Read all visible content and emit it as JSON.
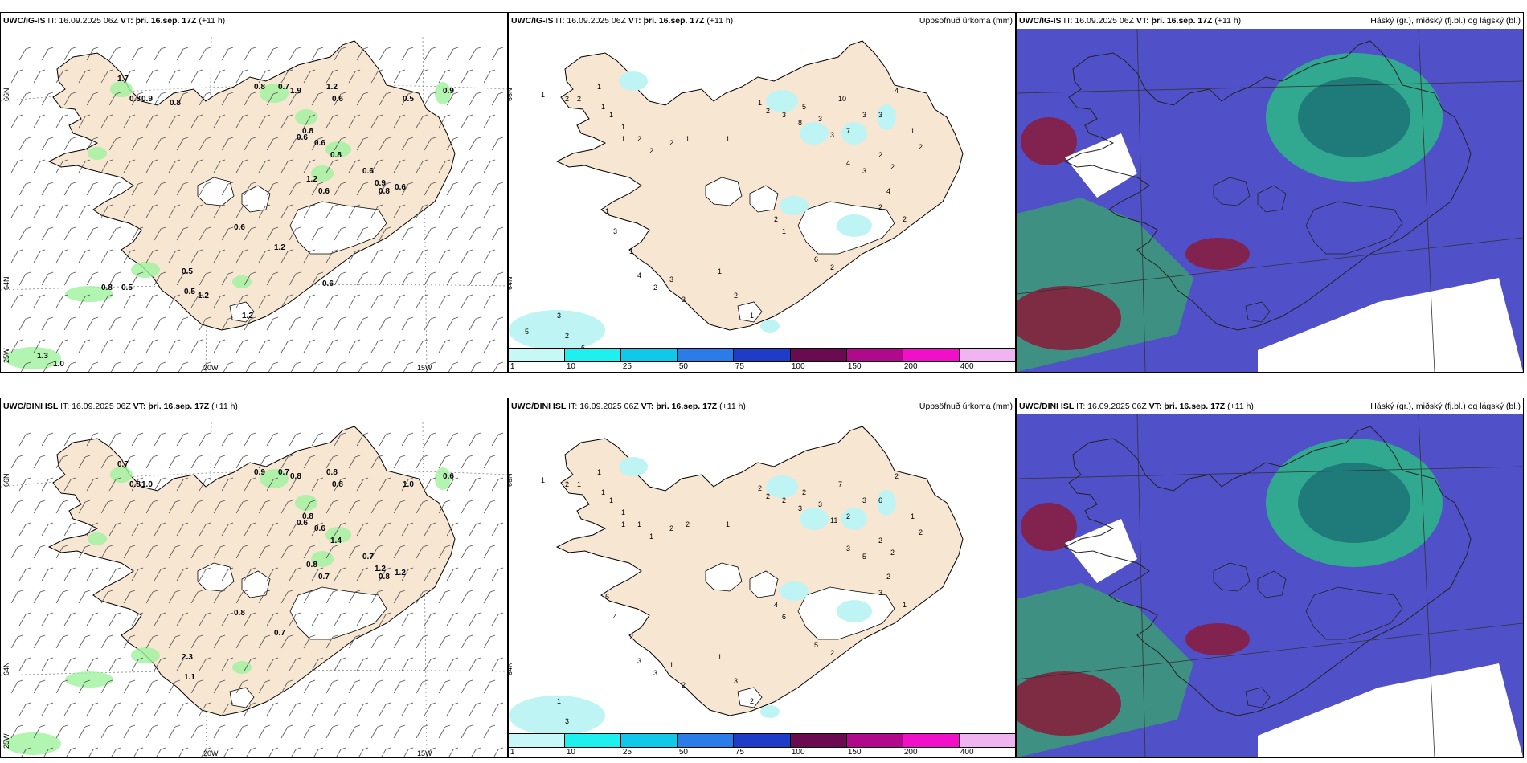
{
  "rows": [
    {
      "model": "UWC/IG-IS",
      "it_label": "IT:",
      "it_value": "16.09.2025 06Z",
      "vt_label": "VT:",
      "vt_value": "þri. 16.sep. 17Z",
      "lead": "(+11 h)",
      "wind_values": [
        "1.7",
        "0.8",
        "0.9",
        "0.8",
        "0.7",
        "1.9",
        "1.2",
        "0.6",
        "0.8",
        "0.6",
        "0.6",
        "0.8",
        "1.2",
        "0.6",
        "0.9",
        "0.6",
        "0.8",
        "0.6",
        "0.5",
        "0.9",
        "0.6",
        "1.2",
        "0.5",
        "0.5",
        "1.2",
        "0.8",
        "0.5",
        "1.2",
        "0.8",
        "0.6",
        "1.3",
        "1.0"
      ],
      "precip_values": [
        "1",
        "2",
        "2",
        "1",
        "1",
        "1",
        "1",
        "1",
        "2",
        "2",
        "2",
        "1",
        "1",
        "1",
        "2",
        "3",
        "5",
        "8",
        "3",
        "3",
        "10",
        "7",
        "3",
        "3",
        "4",
        "4",
        "3",
        "2",
        "2",
        "4",
        "2",
        "2",
        "1",
        "2",
        "1",
        "3",
        "1",
        "4",
        "2",
        "3",
        "3",
        "1",
        "2",
        "1",
        "6",
        "2",
        "2",
        "1",
        "3",
        "2",
        "5",
        "6",
        "2"
      ]
    },
    {
      "model": "UWC/DINI ISL",
      "it_label": "IT:",
      "it_value": "16.09.2025 06Z",
      "vt_label": "VT:",
      "vt_value": "þri. 16.sep. 17Z",
      "lead": "(+11 h)",
      "wind_values": [
        "0.7",
        "0.8",
        "1.0",
        "0.9",
        "0.7",
        "0.8",
        "0.8",
        "0.8",
        "0.8",
        "0.6",
        "0.6",
        "1.4",
        "0.8",
        "0.7",
        "1.2",
        "0.7",
        "0.8",
        "1.2",
        "1.0",
        "0.6",
        "0.8",
        "0.7",
        "2.3",
        "1.1"
      ],
      "precip_values": [
        "1",
        "2",
        "1",
        "1",
        "1",
        "1",
        "1",
        "1",
        "1",
        "1",
        "2",
        "2",
        "1",
        "2",
        "2",
        "2",
        "2",
        "3",
        "3",
        "11",
        "7",
        "2",
        "3",
        "6",
        "2",
        "3",
        "5",
        "2",
        "2",
        "2",
        "3",
        "1",
        "1",
        "2",
        "6",
        "4",
        "2",
        "3",
        "3",
        "1",
        "2",
        "1",
        "3",
        "2",
        "5",
        "2",
        "4",
        "6",
        "1",
        "3"
      ]
    }
  ],
  "precip_title": "Uppsöfnuð úrkoma (mm)",
  "cloud_title": "Háský (gr.), miðský (fj.bl.) og lágský (bl.)",
  "colorbar": {
    "ticks": [
      "1",
      "10",
      "25",
      "50",
      "75",
      "100",
      "150",
      "200",
      "400"
    ],
    "colors": [
      "#c8f7f7",
      "#1ef0f0",
      "#10c8e8",
      "#2a7ce8",
      "#1e3cc8",
      "#6a0a50",
      "#b00a8c",
      "#f010c8",
      "#f0b4f0"
    ]
  },
  "lat_labels": [
    "66N",
    "64N"
  ],
  "lon_labels": [
    "20W",
    "15W"
  ],
  "corner_label": "25W",
  "colors": {
    "land": "#f7e6d2",
    "precip_light": "#bff4f4",
    "wind_green": "#9ef29e",
    "cloud_high": "#1f7a7a",
    "cloud_mid": "#5050c8",
    "cloud_low": "#8a1a3a"
  }
}
